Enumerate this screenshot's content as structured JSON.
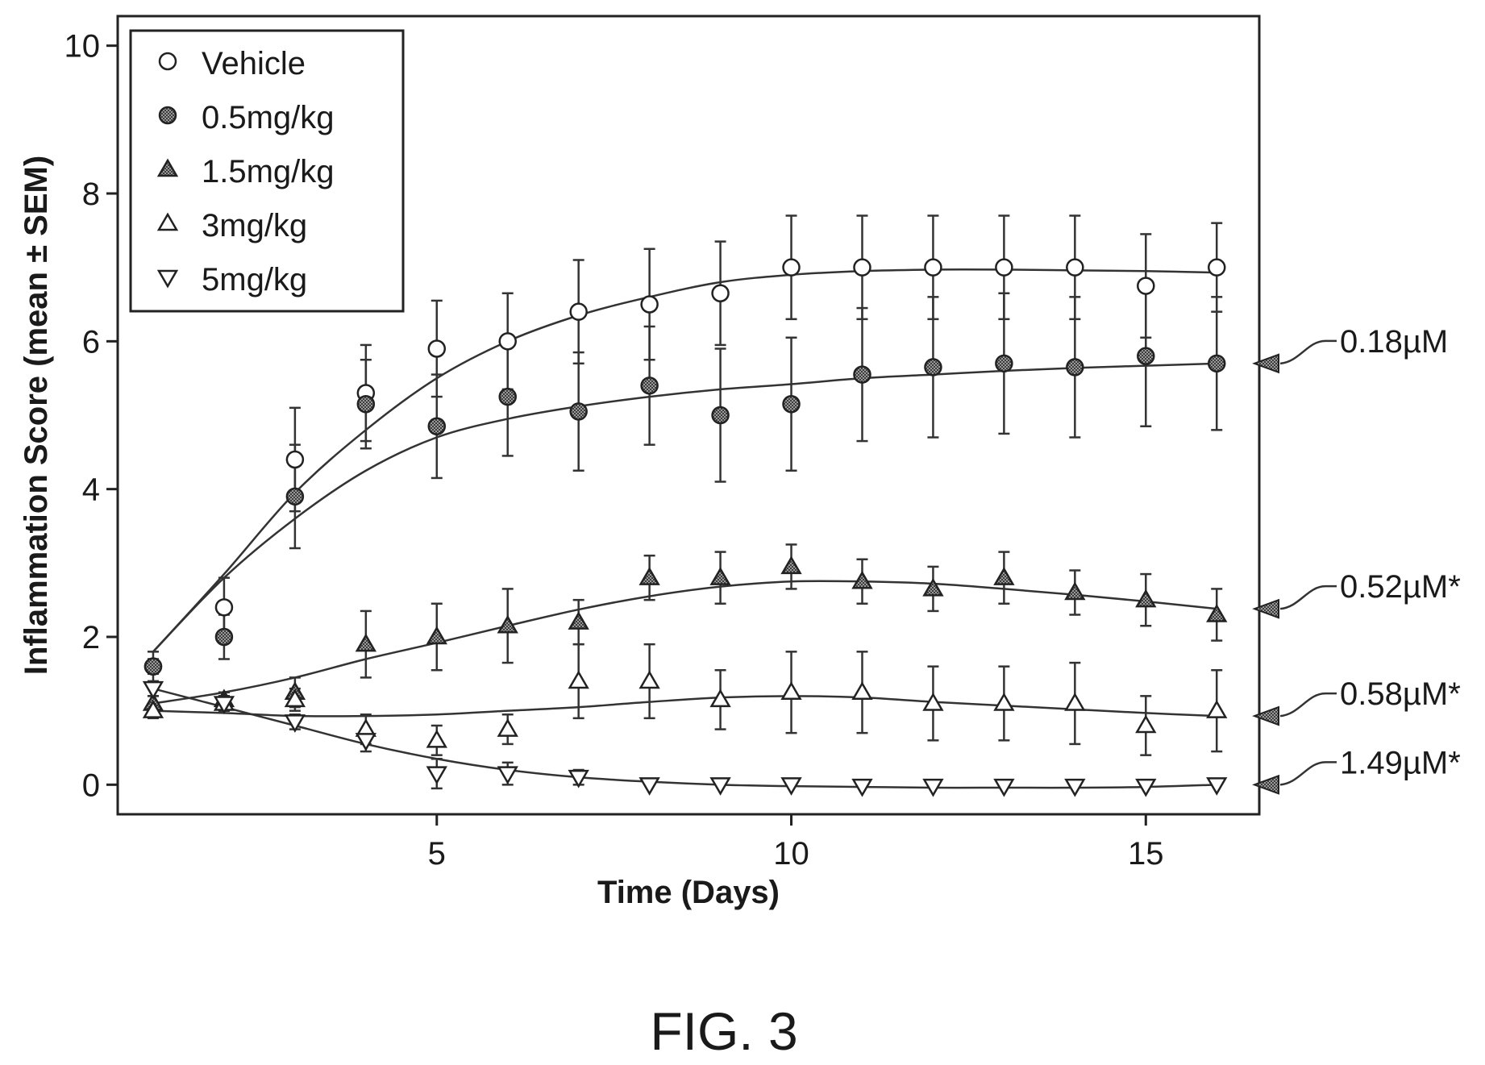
{
  "figure_caption": "FIG. 3",
  "chart_data": {
    "type": "scatter",
    "xlabel": "Time (Days)",
    "ylabel": "Inflammation Score (mean ± SEM)",
    "xlim": [
      0.5,
      16.6
    ],
    "ylim": [
      -0.4,
      10.4
    ],
    "xticks": [
      5,
      10,
      15
    ],
    "yticks": [
      0,
      2,
      4,
      6,
      8,
      10
    ],
    "xtick_labels": [
      "5",
      "10",
      "15"
    ],
    "ytick_labels": [
      "0",
      "2",
      "4",
      "6",
      "8",
      "10"
    ],
    "grid": false,
    "legend_position": "top-left",
    "x": [
      1,
      2,
      3,
      4,
      5,
      6,
      7,
      8,
      9,
      10,
      11,
      12,
      13,
      14,
      15,
      16
    ],
    "series": [
      {
        "name": "Vehicle",
        "marker": "circle-open",
        "values": [
          1.6,
          2.4,
          4.4,
          5.3,
          5.9,
          6.0,
          6.4,
          6.5,
          6.65,
          7.0,
          7.0,
          7.0,
          7.0,
          7.0,
          6.75,
          7.0
        ],
        "error": [
          0.2,
          0.4,
          0.7,
          0.65,
          0.65,
          0.65,
          0.7,
          0.75,
          0.7,
          0.7,
          0.7,
          0.7,
          0.7,
          0.7,
          0.7,
          0.6
        ],
        "fit": [
          1.8,
          2.85,
          3.95,
          4.8,
          5.5,
          6.0,
          6.35,
          6.6,
          6.8,
          6.9,
          6.95,
          6.97,
          6.97,
          6.96,
          6.95,
          6.93
        ],
        "annotation": ""
      },
      {
        "name": "0.5mg/kg",
        "marker": "circle-filled",
        "values": [
          1.6,
          2.0,
          3.9,
          5.15,
          4.85,
          5.25,
          5.05,
          5.4,
          5.0,
          5.15,
          5.55,
          5.65,
          5.7,
          5.65,
          5.8,
          5.7
        ],
        "error": [
          0.1,
          0.3,
          0.7,
          0.6,
          0.7,
          0.8,
          0.8,
          0.8,
          0.9,
          0.9,
          0.9,
          0.95,
          0.95,
          0.95,
          0.95,
          0.9
        ],
        "fit": [
          1.8,
          2.8,
          3.6,
          4.25,
          4.7,
          4.95,
          5.12,
          5.25,
          5.35,
          5.42,
          5.5,
          5.55,
          5.6,
          5.64,
          5.67,
          5.7
        ],
        "annotation": "0.18µM"
      },
      {
        "name": "1.5mg/kg",
        "marker": "triangle-up-filled",
        "values": [
          1.1,
          1.15,
          1.25,
          1.9,
          2.0,
          2.15,
          2.2,
          2.8,
          2.8,
          2.95,
          2.75,
          2.65,
          2.8,
          2.6,
          2.5,
          2.3
        ],
        "error": [
          0.1,
          0.1,
          0.2,
          0.45,
          0.45,
          0.5,
          0.3,
          0.3,
          0.35,
          0.3,
          0.3,
          0.3,
          0.35,
          0.3,
          0.35,
          0.35
        ],
        "fit": [
          1.1,
          1.25,
          1.45,
          1.7,
          1.92,
          2.15,
          2.37,
          2.55,
          2.68,
          2.75,
          2.75,
          2.72,
          2.65,
          2.57,
          2.48,
          2.38
        ],
        "annotation": "0.52µM*"
      },
      {
        "name": "3mg/kg",
        "marker": "triangle-up-open",
        "values": [
          1.0,
          1.1,
          1.15,
          0.75,
          0.6,
          0.75,
          1.4,
          1.4,
          1.15,
          1.25,
          1.25,
          1.1,
          1.1,
          1.1,
          0.8,
          1.0
        ],
        "error": [
          0.1,
          0.1,
          0.15,
          0.2,
          0.2,
          0.2,
          0.5,
          0.5,
          0.4,
          0.55,
          0.55,
          0.5,
          0.5,
          0.55,
          0.4,
          0.55
        ],
        "fit": [
          1.0,
          0.97,
          0.93,
          0.93,
          0.95,
          1.0,
          1.05,
          1.12,
          1.18,
          1.2,
          1.18,
          1.12,
          1.07,
          1.02,
          0.97,
          0.93
        ],
        "annotation": "0.58µM*"
      },
      {
        "name": "5mg/kg",
        "marker": "triangle-down-open",
        "values": [
          1.3,
          1.1,
          0.85,
          0.6,
          0.15,
          0.15,
          0.1,
          0.0,
          0.0,
          0.0,
          -0.02,
          -0.02,
          -0.02,
          -0.02,
          -0.02,
          0.0
        ],
        "error": [
          0.1,
          0.1,
          0.1,
          0.15,
          0.2,
          0.15,
          0.1,
          0.0,
          0.0,
          0.0,
          0.0,
          0.0,
          0.0,
          0.0,
          0.0,
          0.0
        ],
        "fit": [
          1.3,
          1.05,
          0.8,
          0.55,
          0.35,
          0.2,
          0.1,
          0.04,
          0.0,
          -0.02,
          -0.03,
          -0.04,
          -0.04,
          -0.04,
          -0.03,
          0.0
        ],
        "annotation": "1.49µM*"
      }
    ]
  }
}
